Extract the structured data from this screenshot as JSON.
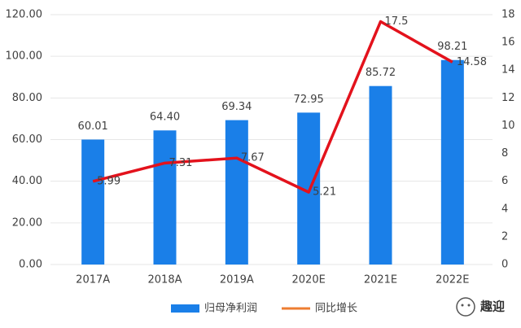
{
  "chart_data": {
    "type": "bar-line",
    "categories": [
      "2017A",
      "2018A",
      "2019A",
      "2020E",
      "2021E",
      "2022E"
    ],
    "series": [
      {
        "name": "归母净利润",
        "type": "bar",
        "color": "#1a7fe8",
        "values": [
          60.01,
          64.4,
          69.34,
          72.95,
          85.72,
          98.21
        ],
        "value_labels": [
          "60.01",
          "64.40",
          "69.34",
          "72.95",
          "85.72",
          "98.21"
        ]
      },
      {
        "name": "同比增长",
        "type": "line",
        "axis": "y2",
        "color": "#e3121c",
        "legend_color": "#ed7d31",
        "values": [
          5.99,
          7.31,
          7.67,
          5.21,
          17.5,
          14.58
        ]
      }
    ],
    "ylim": [
      0,
      120
    ],
    "yticks": [
      {
        "value": 0,
        "label": "0.00"
      },
      {
        "value": 20,
        "label": "20.00"
      },
      {
        "value": 40,
        "label": "40.00"
      },
      {
        "value": 60,
        "label": "60.00"
      },
      {
        "value": 80,
        "label": "80.00"
      },
      {
        "value": 100,
        "label": "100.00"
      },
      {
        "value": 120,
        "label": "120.00"
      }
    ],
    "y2lim": [
      0,
      18
    ],
    "y2ticks": [
      0,
      2,
      4,
      6,
      8,
      10,
      12,
      14,
      16,
      18
    ],
    "grid": true,
    "legend": "bottom",
    "watermark": "趣迎"
  }
}
